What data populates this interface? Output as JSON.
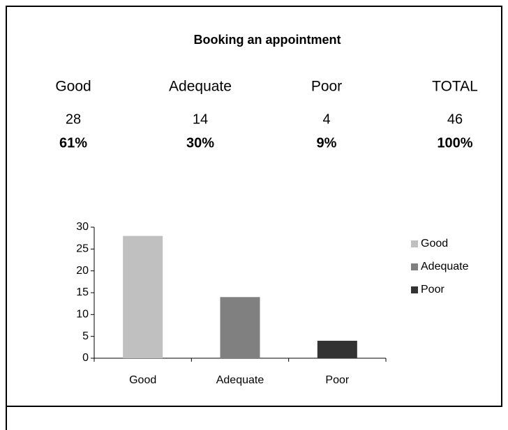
{
  "title": "Booking an appointment",
  "table": {
    "headers": [
      "Good",
      "Adequate",
      "Poor",
      "TOTAL"
    ],
    "counts": [
      "28",
      "14",
      "4",
      "46"
    ],
    "percents": [
      "61%",
      "30%",
      "9%",
      "100%"
    ]
  },
  "chart_data": {
    "type": "bar",
    "categories": [
      "Good",
      "Adequate",
      "Poor"
    ],
    "values": [
      28,
      14,
      4
    ],
    "colors": [
      "#c0c0c0",
      "#808080",
      "#333333"
    ],
    "ylim": [
      0,
      30
    ],
    "yticks": [
      0,
      5,
      10,
      15,
      20,
      25,
      30
    ],
    "legend": "right"
  }
}
